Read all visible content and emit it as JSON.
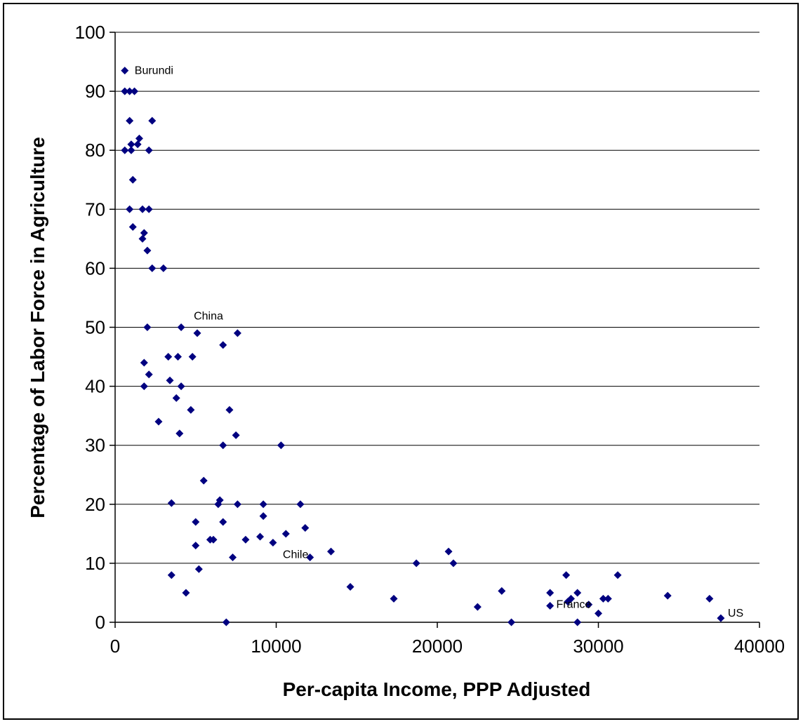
{
  "chart_data": {
    "type": "scatter",
    "title": "",
    "xlabel": "Per-capita Income, PPP Adjusted",
    "ylabel": "Percentage of Labor Force in Agriculture",
    "xlim": [
      0,
      40000
    ],
    "ylim": [
      0,
      100
    ],
    "xticks": [
      0,
      10000,
      20000,
      30000,
      40000
    ],
    "yticks": [
      0,
      10,
      20,
      30,
      40,
      50,
      60,
      70,
      80,
      90,
      100
    ],
    "grid": "horizontal",
    "marker_color": "#000080",
    "points": [
      [
        600,
        93.5
      ],
      [
        600,
        90
      ],
      [
        900,
        90
      ],
      [
        1200,
        90
      ],
      [
        600,
        80
      ],
      [
        1000,
        80
      ],
      [
        1000,
        81
      ],
      [
        1400,
        81
      ],
      [
        1500,
        82
      ],
      [
        2100,
        80
      ],
      [
        900,
        85
      ],
      [
        2300,
        85
      ],
      [
        1100,
        75
      ],
      [
        900,
        70
      ],
      [
        1700,
        70
      ],
      [
        2100,
        70
      ],
      [
        1100,
        67
      ],
      [
        1800,
        66
      ],
      [
        1700,
        65
      ],
      [
        2000,
        63
      ],
      [
        2300,
        60
      ],
      [
        3000,
        60
      ],
      [
        2000,
        50
      ],
      [
        4100,
        50
      ],
      [
        5100,
        49
      ],
      [
        7600,
        49
      ],
      [
        6700,
        47
      ],
      [
        3300,
        45
      ],
      [
        3900,
        45
      ],
      [
        4800,
        45
      ],
      [
        1800,
        44
      ],
      [
        2100,
        42
      ],
      [
        3400,
        41
      ],
      [
        1800,
        40
      ],
      [
        4100,
        40
      ],
      [
        3800,
        38
      ],
      [
        4700,
        36
      ],
      [
        7100,
        36
      ],
      [
        2700,
        34
      ],
      [
        4000,
        32
      ],
      [
        7500,
        31.7
      ],
      [
        6700,
        30
      ],
      [
        10300,
        30
      ],
      [
        5500,
        24
      ],
      [
        3500,
        20.2
      ],
      [
        6500,
        20.7
      ],
      [
        6400,
        20
      ],
      [
        7600,
        20
      ],
      [
        9200,
        20
      ],
      [
        11500,
        20
      ],
      [
        9200,
        18
      ],
      [
        5000,
        17
      ],
      [
        6700,
        17
      ],
      [
        11800,
        16
      ],
      [
        10600,
        15
      ],
      [
        9000,
        14.5
      ],
      [
        5900,
        14
      ],
      [
        6100,
        14
      ],
      [
        8100,
        14
      ],
      [
        9800,
        13.5
      ],
      [
        5000,
        13
      ],
      [
        13400,
        12
      ],
      [
        20700,
        12
      ],
      [
        7300,
        11
      ],
      [
        12100,
        11
      ],
      [
        18700,
        10
      ],
      [
        21000,
        10
      ],
      [
        5200,
        9
      ],
      [
        3500,
        8
      ],
      [
        28000,
        8
      ],
      [
        31200,
        8
      ],
      [
        14600,
        6
      ],
      [
        4400,
        5
      ],
      [
        24000,
        5.3
      ],
      [
        27000,
        5
      ],
      [
        28700,
        5
      ],
      [
        34300,
        4.5
      ],
      [
        28300,
        4
      ],
      [
        17300,
        4
      ],
      [
        30300,
        4
      ],
      [
        30600,
        4
      ],
      [
        36900,
        4
      ],
      [
        28100,
        3.5
      ],
      [
        29400,
        3
      ],
      [
        27000,
        2.8
      ],
      [
        22500,
        2.6
      ],
      [
        30000,
        1.5
      ],
      [
        37600,
        0.7
      ],
      [
        6900,
        0
      ],
      [
        24600,
        0
      ],
      [
        28700,
        0
      ]
    ],
    "annotations": [
      {
        "text": "Burundi",
        "x": 600,
        "y": 93.5
      },
      {
        "text": "China",
        "x": 4100,
        "y": 50
      },
      {
        "text": "Chile",
        "x": 9800,
        "y": 13.5
      },
      {
        "text": "France",
        "x": 30000,
        "y": 1.5
      },
      {
        "text": "US",
        "x": 37600,
        "y": 0.7
      }
    ]
  }
}
